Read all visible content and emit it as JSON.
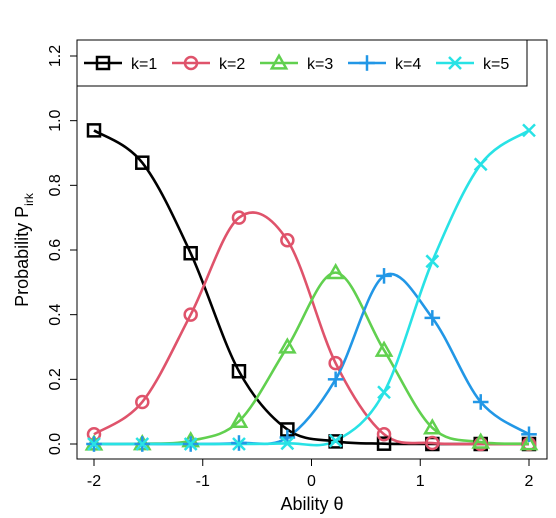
{
  "chart_data": {
    "type": "line",
    "xlabel": "Ability θ",
    "ylabel_main": "Probability P",
    "ylabel_sub": "irk",
    "xlim": [
      -2,
      2
    ],
    "ylim": [
      0,
      1.2
    ],
    "x_ticks": [
      "-2",
      "-1",
      "0",
      "1",
      "2"
    ],
    "y_ticks": [
      "0.0",
      "0.2",
      "0.4",
      "0.6",
      "0.8",
      "1.0",
      "1.2"
    ],
    "legend_position": "top",
    "grid": false,
    "marker_x": [
      -2.0,
      -1.556,
      -1.111,
      -0.667,
      -0.222,
      0.222,
      0.667,
      1.111,
      1.556,
      2.0
    ],
    "series": [
      {
        "name": "k=1",
        "color": "#000000",
        "marker": "square",
        "values": [
          0.97,
          0.87,
          0.59,
          0.225,
          0.045,
          0.008,
          0.001,
          0.0,
          0.0,
          0.0
        ]
      },
      {
        "name": "k=2",
        "color": "#DF536B",
        "marker": "circle",
        "values": [
          0.03,
          0.13,
          0.4,
          0.7,
          0.63,
          0.25,
          0.03,
          0.003,
          0.0,
          0.0
        ]
      },
      {
        "name": "k=3",
        "color": "#61D04F",
        "marker": "triangle",
        "values": [
          0.0,
          0.001,
          0.01,
          0.07,
          0.3,
          0.53,
          0.29,
          0.05,
          0.006,
          0.001
        ]
      },
      {
        "name": "k=4",
        "color": "#2297E6",
        "marker": "plus",
        "values": [
          0.0,
          0.0,
          0.0,
          0.003,
          0.02,
          0.2,
          0.52,
          0.39,
          0.13,
          0.03
        ]
      },
      {
        "name": "k=5",
        "color": "#28E2E5",
        "marker": "x",
        "values": [
          0.0,
          0.0,
          0.0,
          0.0,
          0.002,
          0.01,
          0.16,
          0.565,
          0.865,
          0.97
        ]
      }
    ]
  }
}
